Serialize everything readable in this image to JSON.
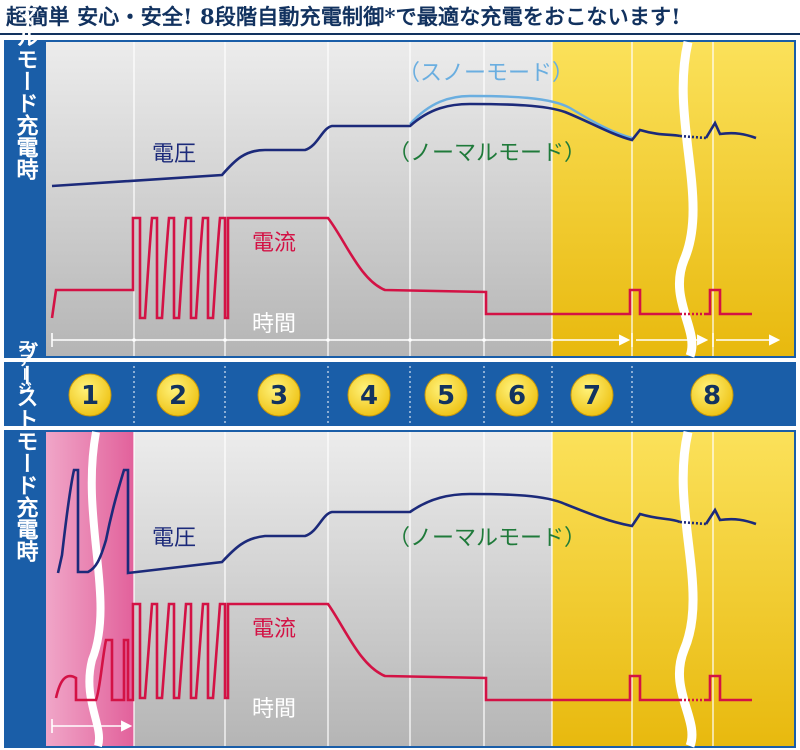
{
  "headline": "超簡単 安心・安全! 8段階自動充電制御*で最適な充電をおこないます!",
  "top_panel": {
    "title": "ノーマルモード充電時",
    "voltage_label": "電圧",
    "current_label": "電流",
    "time_label": "時間",
    "snow_mode_label": "（スノーモード）",
    "normal_mode_label": "（ノーマルモード）"
  },
  "stage_bar": {
    "title": "ステージ",
    "stages": [
      "1",
      "2",
      "3",
      "4",
      "5",
      "6",
      "7",
      "8"
    ]
  },
  "bottom_panel": {
    "title": "ブーストモード充電時",
    "voltage_label": "電圧",
    "current_label": "電流",
    "time_label": "時間",
    "normal_mode_label": "（ノーマルモード）"
  },
  "colors": {
    "navy": "#12325f",
    "voltage": "#1c2a7a",
    "current": "#d31245",
    "snow": "#6aaee0",
    "normal_label": "#1f7a3a",
    "gray_bg": "#c6c6c6",
    "yellow_bg": "#f2cc17",
    "pink_bg": "#e76fa6",
    "stage_badge": "#f4d21a"
  }
}
